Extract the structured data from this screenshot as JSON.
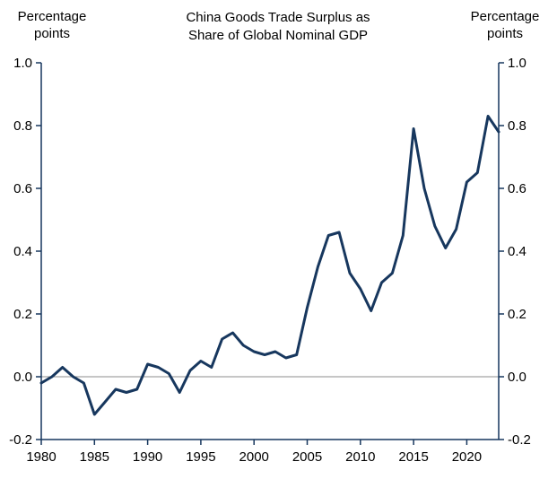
{
  "header": {
    "left_axis_label": "Percentage\npoints",
    "right_axis_label": "Percentage\npoints",
    "title": "China Goods Trade Surplus as\nShare of Global Nominal GDP"
  },
  "chart_data": {
    "type": "line",
    "title": "China Goods Trade Surplus as Share of Global Nominal GDP",
    "ylabel_left": "Percentage points",
    "ylabel_right": "Percentage points",
    "xlim": [
      1980,
      2023
    ],
    "ylim": [
      -0.2,
      1.0
    ],
    "y_ticks": [
      -0.2,
      0.0,
      0.2,
      0.4,
      0.6,
      0.8,
      1.0
    ],
    "x_ticks": [
      1980,
      1985,
      1990,
      1995,
      2000,
      2005,
      2010,
      2015,
      2020
    ],
    "grid": "zero-line-only",
    "legend": "none",
    "line_color": "#17375E",
    "zero_line_color": "#8c8c8c",
    "axis_color": "#17375E",
    "series": [
      {
        "name": "China goods trade surplus share of global nominal GDP",
        "x": [
          1980,
          1981,
          1982,
          1983,
          1984,
          1985,
          1986,
          1987,
          1988,
          1989,
          1990,
          1991,
          1992,
          1993,
          1994,
          1995,
          1996,
          1997,
          1998,
          1999,
          2000,
          2001,
          2002,
          2003,
          2004,
          2005,
          2006,
          2007,
          2008,
          2009,
          2010,
          2011,
          2012,
          2013,
          2014,
          2015,
          2016,
          2017,
          2018,
          2019,
          2020,
          2021,
          2022,
          2023
        ],
        "values": [
          -0.02,
          0.0,
          0.03,
          0.0,
          -0.02,
          -0.12,
          -0.08,
          -0.04,
          -0.05,
          -0.04,
          0.04,
          0.03,
          0.01,
          -0.05,
          0.02,
          0.05,
          0.03,
          0.12,
          0.14,
          0.1,
          0.08,
          0.07,
          0.08,
          0.06,
          0.07,
          0.22,
          0.35,
          0.45,
          0.46,
          0.33,
          0.28,
          0.21,
          0.3,
          0.33,
          0.45,
          0.79,
          0.6,
          0.48,
          0.41,
          0.47,
          0.62,
          0.65,
          0.83,
          0.78
        ]
      }
    ]
  }
}
